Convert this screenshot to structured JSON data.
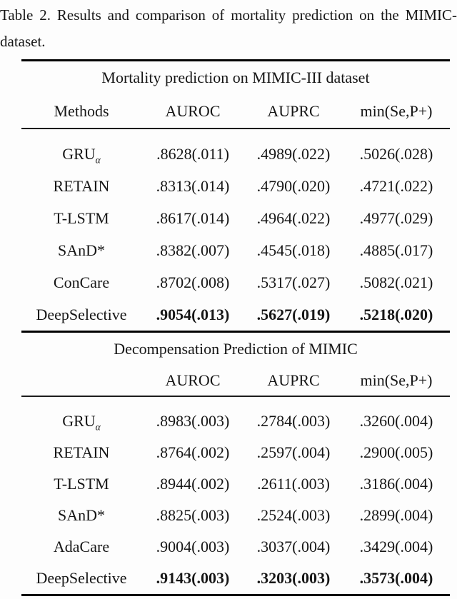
{
  "caption": {
    "line1": "Table 2. Results and comparison of mortality prediction on the MIMIC-",
    "line2": "dataset."
  },
  "colors": {
    "background": "#fdfdfd",
    "text": "#161616",
    "rule": "#000000"
  },
  "table": {
    "sections": [
      {
        "title": "Mortality prediction on MIMIC-III dataset",
        "columns": {
          "c0": "Methods",
          "c1": "AUROC",
          "c2": "AUPRC",
          "c3": "min(Se,P+)"
        },
        "rows": [
          {
            "method": "GRU",
            "method_sub": "α",
            "auroc": ".8628(.011)",
            "auprc": ".4989(.022)",
            "minsep": ".5026(.028)"
          },
          {
            "method": "RETAIN",
            "method_sub": "",
            "auroc": ".8313(.014)",
            "auprc": ".4790(.020)",
            "minsep": ".4721(.022)"
          },
          {
            "method": "T-LSTM",
            "method_sub": "",
            "auroc": ".8617(.014)",
            "auprc": ".4964(.022)",
            "minsep": ".4977(.029)"
          },
          {
            "method": "SAnD*",
            "method_sub": "",
            "auroc": ".8382(.007)",
            "auprc": ".4545(.018)",
            "minsep": ".4885(.017)"
          },
          {
            "method": "ConCare",
            "method_sub": "",
            "auroc": ".8702(.008)",
            "auprc": ".5317(.027)",
            "minsep": ".5082(.021)"
          },
          {
            "method": "DeepSelective",
            "method_sub": "",
            "auroc": ".9054(.013)",
            "auprc": ".5627(.019)",
            "minsep": ".5218(.020)",
            "bold": true
          }
        ]
      },
      {
        "title": "Decompensation Prediction of MIMIC",
        "columns": {
          "c0": "",
          "c1": "AUROC",
          "c2": "AUPRC",
          "c3": "min(Se,P+)"
        },
        "rows": [
          {
            "method": "GRU",
            "method_sub": "α",
            "auroc": ".8983(.003)",
            "auprc": ".2784(.003)",
            "minsep": ".3260(.004)"
          },
          {
            "method": "RETAIN",
            "method_sub": "",
            "auroc": ".8764(.002)",
            "auprc": ".2597(.004)",
            "minsep": ".2900(.005)"
          },
          {
            "method": "T-LSTM",
            "method_sub": "",
            "auroc": ".8944(.002)",
            "auprc": ".2611(.003)",
            "minsep": ".3186(.004)"
          },
          {
            "method": "SAnD*",
            "method_sub": "",
            "auroc": ".8825(.003)",
            "auprc": ".2524(.003)",
            "minsep": ".2899(.004)"
          },
          {
            "method": "AdaCare",
            "method_sub": "",
            "auroc": ".9004(.003)",
            "auprc": ".3037(.004)",
            "minsep": ".3429(.004)"
          },
          {
            "method": "DeepSelective",
            "method_sub": "",
            "auroc": ".9143(.003)",
            "auprc": ".3203(.003)",
            "minsep": ".3573(.004)",
            "bold": true
          }
        ]
      }
    ]
  }
}
